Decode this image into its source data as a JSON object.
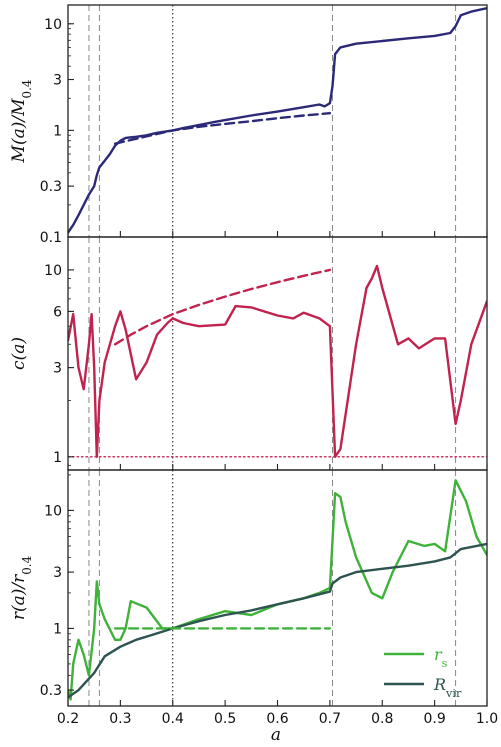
{
  "colors": {
    "mass": "#2c2a78",
    "conc": "#c0234e",
    "rs": "#3fb23a",
    "rvir": "#2d5450",
    "frame": "#222222",
    "vline": "#888888",
    "unity": "#c0234e"
  },
  "chart_data": [
    {
      "type": "line",
      "panel": "top",
      "ylabel": "M(a)/M_{0.4}",
      "yscale": "log",
      "xlim": [
        0.2,
        1.0
      ],
      "ylim": [
        0.1,
        15
      ],
      "yticks": [
        0.1,
        0.3,
        1,
        3,
        10
      ],
      "ytick_labels": [
        "0.1",
        "0.3",
        "1",
        "3",
        "10"
      ],
      "series": [
        {
          "style": "solid",
          "color_key": "mass",
          "x": [
            0.2,
            0.21,
            0.22,
            0.23,
            0.24,
            0.25,
            0.255,
            0.26,
            0.27,
            0.28,
            0.29,
            0.3,
            0.31,
            0.33,
            0.35,
            0.37,
            0.4,
            0.42,
            0.45,
            0.48,
            0.5,
            0.55,
            0.6,
            0.65,
            0.68,
            0.69,
            0.7,
            0.705,
            0.71,
            0.72,
            0.75,
            0.8,
            0.85,
            0.9,
            0.93,
            0.94,
            0.95,
            0.97,
            1.0
          ],
          "y": [
            0.11,
            0.13,
            0.16,
            0.2,
            0.25,
            0.3,
            0.38,
            0.45,
            0.52,
            0.6,
            0.72,
            0.8,
            0.85,
            0.87,
            0.9,
            0.95,
            1.0,
            1.05,
            1.12,
            1.2,
            1.25,
            1.38,
            1.5,
            1.65,
            1.75,
            1.68,
            1.8,
            2.6,
            5.2,
            6.0,
            6.5,
            6.9,
            7.3,
            7.7,
            8.2,
            9.5,
            12.0,
            13.0,
            14.0
          ]
        },
        {
          "style": "dashed",
          "color_key": "mass",
          "x": [
            0.29,
            0.35,
            0.4,
            0.45,
            0.5,
            0.55,
            0.6,
            0.65,
            0.7
          ],
          "y": [
            0.75,
            0.88,
            1.0,
            1.08,
            1.15,
            1.22,
            1.3,
            1.38,
            1.45
          ]
        }
      ]
    },
    {
      "type": "line",
      "panel": "middle",
      "ylabel": "c(a)",
      "yscale": "log",
      "xlim": [
        0.2,
        1.0
      ],
      "ylim": [
        0.85,
        15
      ],
      "yticks": [
        1,
        3,
        6,
        10
      ],
      "ytick_labels": [
        "1",
        "3",
        "6",
        "10"
      ],
      "series": [
        {
          "style": "solid",
          "color_key": "conc",
          "x": [
            0.2,
            0.21,
            0.22,
            0.23,
            0.24,
            0.245,
            0.25,
            0.255,
            0.26,
            0.27,
            0.29,
            0.3,
            0.31,
            0.33,
            0.35,
            0.37,
            0.39,
            0.4,
            0.42,
            0.45,
            0.5,
            0.52,
            0.55,
            0.6,
            0.63,
            0.65,
            0.68,
            0.7,
            0.71,
            0.72,
            0.75,
            0.77,
            0.78,
            0.79,
            0.8,
            0.83,
            0.85,
            0.87,
            0.9,
            0.92,
            0.94,
            0.95,
            0.97,
            1.0
          ],
          "y": [
            4.2,
            5.8,
            3.0,
            2.3,
            4.0,
            5.8,
            3.0,
            1.0,
            2.0,
            3.2,
            5.0,
            6.0,
            4.8,
            2.6,
            3.2,
            4.5,
            5.2,
            5.5,
            5.2,
            5.0,
            5.1,
            6.4,
            6.3,
            5.7,
            5.5,
            5.9,
            5.5,
            5.0,
            1.0,
            1.1,
            4.0,
            8.0,
            9.0,
            10.5,
            8.0,
            4.0,
            4.3,
            3.8,
            4.3,
            4.3,
            1.5,
            2.0,
            4.0,
            6.8
          ]
        },
        {
          "style": "dashed",
          "color_key": "conc",
          "x": [
            0.29,
            0.32,
            0.35,
            0.4,
            0.45,
            0.5,
            0.55,
            0.6,
            0.65,
            0.7
          ],
          "y": [
            4.0,
            4.5,
            5.0,
            5.8,
            6.5,
            7.2,
            7.9,
            8.6,
            9.3,
            10.0
          ]
        },
        {
          "style": "dotted",
          "color_key": "unity",
          "x": [
            0.2,
            1.0
          ],
          "y": [
            1,
            1
          ]
        }
      ]
    },
    {
      "type": "line",
      "panel": "bottom",
      "ylabel": "r(a)/r_{0.4}",
      "xlabel": "a",
      "yscale": "log",
      "xlim": [
        0.2,
        1.0
      ],
      "ylim": [
        0.22,
        22
      ],
      "yticks": [
        0.3,
        1,
        3,
        10
      ],
      "ytick_labels": [
        "0.3",
        "1",
        "3",
        "10"
      ],
      "xticks": [
        0.2,
        0.3,
        0.4,
        0.5,
        0.6,
        0.7,
        0.8,
        0.9,
        1.0
      ],
      "xtick_labels": [
        "0.2",
        "0.3",
        "0.4",
        "0.5",
        "0.6",
        "0.7",
        "0.8",
        "0.9",
        "1.0"
      ],
      "legend_position": "lower-right",
      "legend": [
        {
          "label": "r_s",
          "color_key": "rs"
        },
        {
          "label": "R_vir",
          "color_key": "rvir"
        }
      ],
      "series": [
        {
          "name": "r_s",
          "style": "solid",
          "color_key": "rs",
          "x": [
            0.2,
            0.205,
            0.21,
            0.22,
            0.23,
            0.24,
            0.25,
            0.255,
            0.26,
            0.27,
            0.29,
            0.3,
            0.31,
            0.32,
            0.35,
            0.38,
            0.4,
            0.45,
            0.5,
            0.55,
            0.6,
            0.65,
            0.68,
            0.7,
            0.71,
            0.72,
            0.73,
            0.75,
            0.78,
            0.8,
            0.82,
            0.85,
            0.88,
            0.9,
            0.92,
            0.94,
            0.96,
            0.98,
            1.0
          ],
          "y": [
            0.3,
            0.25,
            0.5,
            0.8,
            0.6,
            0.4,
            1.0,
            2.5,
            1.6,
            1.2,
            0.8,
            0.8,
            1.0,
            1.7,
            1.5,
            1.0,
            1.0,
            1.2,
            1.4,
            1.3,
            1.6,
            1.8,
            2.0,
            2.2,
            14.0,
            13.0,
            8.0,
            4.0,
            2.0,
            1.8,
            3.0,
            5.5,
            5.0,
            5.2,
            4.5,
            18.0,
            12.0,
            6.0,
            4.2
          ]
        },
        {
          "name": "R_vir",
          "style": "solid",
          "color_key": "rvir",
          "x": [
            0.2,
            0.22,
            0.25,
            0.27,
            0.3,
            0.33,
            0.36,
            0.4,
            0.45,
            0.5,
            0.55,
            0.6,
            0.65,
            0.7,
            0.705,
            0.72,
            0.75,
            0.8,
            0.85,
            0.9,
            0.93,
            0.95,
            1.0
          ],
          "y": [
            0.26,
            0.3,
            0.42,
            0.58,
            0.7,
            0.8,
            0.88,
            1.0,
            1.15,
            1.3,
            1.42,
            1.6,
            1.8,
            2.05,
            2.4,
            2.7,
            3.0,
            3.2,
            3.4,
            3.7,
            4.0,
            4.7,
            5.2
          ]
        },
        {
          "style": "dashed",
          "color_key": "rs",
          "x": [
            0.29,
            0.7
          ],
          "y": [
            1.0,
            1.0
          ]
        }
      ]
    }
  ],
  "vlines": {
    "dashed": [
      0.24,
      0.26,
      0.705,
      0.94
    ],
    "dotted": [
      0.4
    ]
  }
}
